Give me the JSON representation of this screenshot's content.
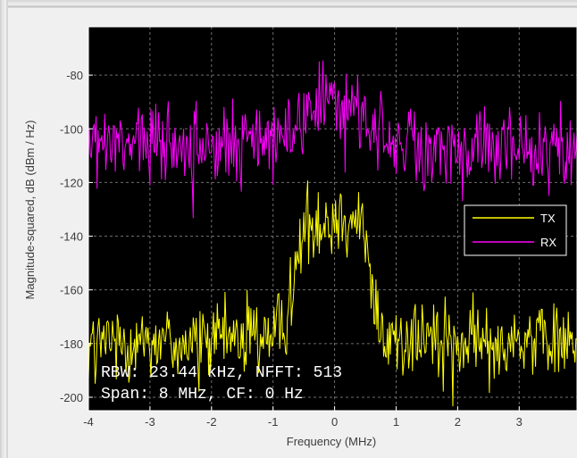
{
  "chart_data": {
    "type": "line",
    "xlabel": "Frequency (MHz)",
    "ylabel": "Magnitude-squared, dB (dBm / Hz)",
    "xlim": [
      -4,
      4
    ],
    "ylim": [
      -205,
      -62
    ],
    "x_ticks": [
      -4,
      -3,
      -2,
      -1,
      0,
      1,
      2,
      3
    ],
    "x_tick_labels": [
      "-4",
      "-3",
      "-2",
      "-1",
      "0",
      "1",
      "2",
      "3"
    ],
    "y_ticks": [
      -200,
      -180,
      -160,
      -140,
      -120,
      -100,
      -80
    ],
    "y_tick_labels": [
      "-200",
      "-180",
      "-160",
      "-140",
      "-120",
      "-100",
      "-80"
    ],
    "grid": true,
    "background": "#000000",
    "legend_position": "right",
    "series": [
      {
        "name": "TX",
        "color": "#ffff00",
        "x": [
          -4,
          -3.5,
          -3,
          -2.5,
          -2,
          -1.5,
          -1,
          -0.8,
          -0.6,
          -0.5,
          -0.4,
          -0.2,
          0,
          0.2,
          0.4,
          0.5,
          0.6,
          0.8,
          1,
          1.5,
          2,
          2.5,
          3,
          3.5,
          4
        ],
        "y": [
          -180,
          -179,
          -178,
          -180,
          -179,
          -177,
          -175,
          -171,
          -150,
          -137,
          -135,
          -134,
          -133,
          -132,
          -135,
          -140,
          -160,
          -178,
          -178,
          -179,
          -179,
          -180,
          -178,
          -179,
          -179
        ]
      },
      {
        "name": "RX",
        "color": "#ff00ff",
        "x": [
          -4,
          -3.5,
          -3,
          -2.5,
          -2,
          -1.5,
          -1,
          -0.6,
          -0.4,
          -0.2,
          0,
          0.2,
          0.4,
          0.6,
          1,
          1.5,
          2,
          2.5,
          3,
          3.5,
          4
        ],
        "y": [
          -106,
          -107,
          -106,
          -107,
          -108,
          -106,
          -103,
          -97,
          -93,
          -90,
          -87,
          -89,
          -93,
          -98,
          -104,
          -106,
          -107,
          -106,
          -108,
          -106,
          -107
        ]
      }
    ],
    "annotations": [
      "RBW: 23.44 kHz, NFFT: 513",
      "Span: 8 MHz, CF: 0 Hz"
    ]
  }
}
